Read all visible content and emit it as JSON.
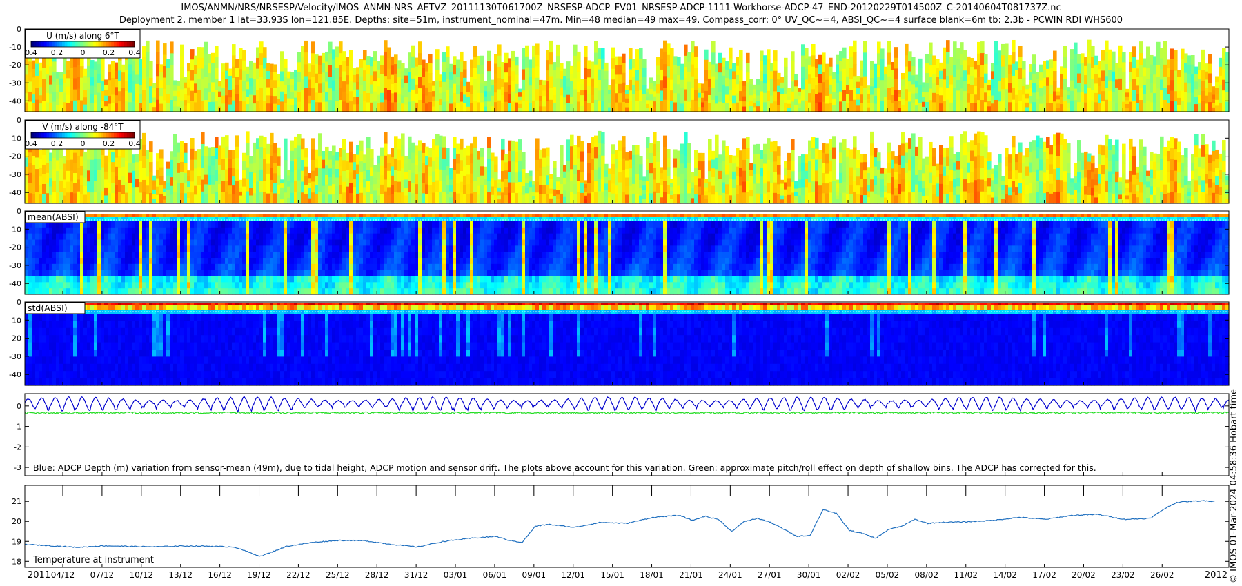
{
  "header": {
    "line1": "IMOS/ANMN/NRS/NRSESP/Velocity/IMOS_ANMN-NRS_AETVZ_20111130T061700Z_NRSESP-ADCP_FV01_NRSESP-ADCP-1111-Workhorse-ADCP-47_END-20120229T014500Z_C-20140604T081737Z.nc",
    "line2": "Deployment 2, member 1 lat=33.93S lon=121.85E. Depths: site=51m, instrument_nominal=47m. Min=48 median=49 max=49. Compass_corr: 0° UV_QC~=4, ABSI_QC~=4 surface blank=6m tb: 2.3b - PCWIN RDI WHS600"
  },
  "credit": "© IMOS 01-Mar-2024 04:58:36 Hobart time",
  "chart_data": [
    {
      "type": "heatmap",
      "label": "U (m/s) along 6°T",
      "y_ticks": [
        0,
        -10,
        -20,
        -30,
        -40
      ],
      "ylim": [
        -46,
        0
      ],
      "colorbar": {
        "ticks": [
          "0.4",
          "0.2",
          "0",
          "0.2",
          "0.4"
        ],
        "range": [
          -0.4,
          0.4
        ],
        "colormap": "jet"
      },
      "typical_value_range": [
        -0.1,
        0.15
      ]
    },
    {
      "type": "heatmap",
      "label": "V (m/s) along -84°T",
      "y_ticks": [
        0,
        -10,
        -20,
        -30,
        -40
      ],
      "ylim": [
        -46,
        0
      ],
      "colorbar": {
        "ticks": [
          "0.4",
          "0.2",
          "0",
          "0.2",
          "0.4"
        ],
        "range": [
          -0.4,
          0.4
        ],
        "colormap": "jet"
      },
      "typical_value_range": [
        -0.1,
        0.15
      ]
    },
    {
      "type": "heatmap",
      "label": "mean(ABSI)",
      "y_ticks": [
        0,
        -10,
        -20,
        -30,
        -40
      ],
      "ylim": [
        -46,
        0
      ],
      "colormap": "jet"
    },
    {
      "type": "heatmap",
      "label": "std(ABSI)",
      "y_ticks": [
        0,
        -10,
        -20,
        -30,
        -40
      ],
      "ylim": [
        -46,
        0
      ],
      "colormap": "jet"
    },
    {
      "type": "line",
      "y_ticks": [
        0,
        -1,
        -2,
        -3
      ],
      "ylim": [
        -3.4,
        0.6
      ],
      "series": [
        {
          "color": "#0000cc",
          "mean": 0.15,
          "tidal_amplitude": 0.28
        },
        {
          "color": "#22dd22",
          "mean": -0.33,
          "tidal_amplitude": 0.04
        }
      ],
      "annotation": "Blue: ADCP Depth (m) variation from sensor-mean (49m), due to tidal height, ADCP motion and sensor drift. The plots above account for this variation. Green: approximate pitch/roll effect on depth of shallow bins. The ADCP has corrected for this."
    },
    {
      "type": "line",
      "label": "Temperature at instrument",
      "y_ticks": [
        18,
        19,
        20,
        21
      ],
      "ylim": [
        17.7,
        21.8
      ],
      "color": "#1f6fbf",
      "x": [
        0,
        2,
        4,
        6,
        8,
        10,
        12,
        14,
        16,
        18,
        19,
        20,
        22,
        24,
        26,
        28,
        30,
        32,
        34,
        36,
        37,
        38,
        39,
        40,
        42,
        44,
        46,
        48,
        50,
        51,
        52,
        53,
        54,
        55,
        56,
        57,
        58,
        59,
        60,
        61,
        62,
        63,
        64,
        65,
        66,
        67,
        68,
        69,
        70,
        72,
        74,
        76,
        78,
        80,
        82,
        84,
        86,
        87,
        88,
        89,
        90,
        91
      ],
      "y": [
        18.85,
        18.78,
        18.7,
        18.78,
        18.75,
        18.73,
        18.77,
        18.76,
        18.72,
        18.25,
        18.5,
        18.75,
        18.95,
        19.05,
        19.03,
        18.85,
        18.72,
        19.0,
        19.15,
        19.25,
        19.05,
        18.95,
        19.75,
        19.85,
        19.7,
        19.95,
        19.9,
        20.2,
        20.3,
        20.05,
        20.25,
        20.1,
        19.5,
        20.0,
        20.15,
        19.95,
        19.6,
        19.25,
        19.3,
        20.6,
        20.4,
        19.55,
        19.4,
        19.15,
        19.6,
        19.75,
        20.1,
        19.9,
        19.95,
        19.98,
        20.05,
        20.2,
        20.1,
        20.3,
        20.35,
        20.1,
        20.15,
        20.6,
        20.95,
        21.0,
        21.03,
        21.0
      ]
    }
  ],
  "x_axis": {
    "start_label": "2011",
    "end_label": "2012",
    "ticks": [
      "04/12",
      "07/12",
      "10/12",
      "13/12",
      "16/12",
      "19/12",
      "22/12",
      "25/12",
      "28/12",
      "31/12",
      "03/01",
      "06/01",
      "09/01",
      "12/01",
      "15/01",
      "18/01",
      "21/01",
      "24/01",
      "27/01",
      "30/01",
      "02/02",
      "05/02",
      "08/02",
      "11/02",
      "14/02",
      "17/02",
      "20/02",
      "23/02",
      "26/02"
    ]
  }
}
